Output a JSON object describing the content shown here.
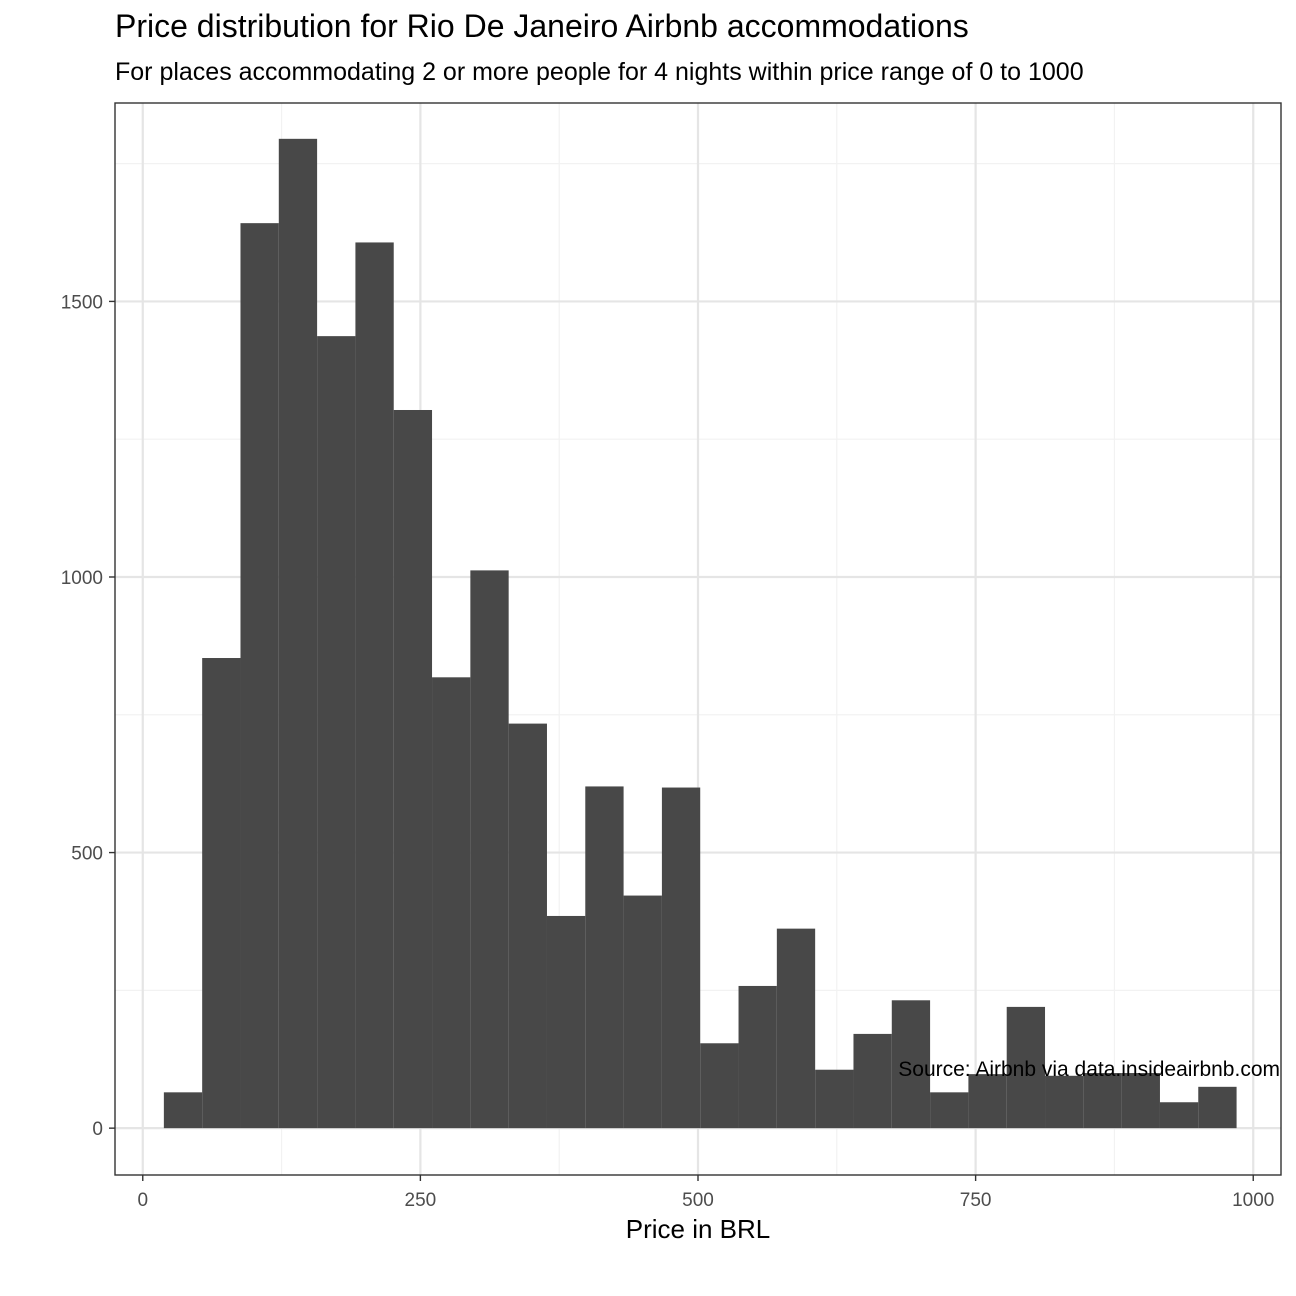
{
  "chart_data": {
    "type": "bar",
    "title": "Price distribution for Rio De Janeiro Airbnb accommodations",
    "subtitle": "For places accommodating 2 or more people for 4 nights within price range of 0 to 1000",
    "caption": "Source: Airbnb via data.insideairbnb.com",
    "xlabel": "Price in BRL",
    "ylabel": "",
    "xlim": [
      -25,
      1025
    ],
    "ylim": [
      -85,
      1860
    ],
    "x_ticks": [
      0,
      250,
      500,
      750,
      1000
    ],
    "x_tick_labels": [
      "0",
      "250",
      "500",
      "750",
      "1000"
    ],
    "y_ticks": [
      0,
      500,
      1000,
      1500
    ],
    "y_tick_labels": [
      "0",
      "500",
      "1000",
      "1500"
    ],
    "grid": true,
    "bin_width": 34.5,
    "bins": [
      {
        "x0": 19.0,
        "x1": 53.5,
        "count": 65
      },
      {
        "x0": 53.5,
        "x1": 88.0,
        "count": 853
      },
      {
        "x0": 88.0,
        "x1": 122.5,
        "count": 1642
      },
      {
        "x0": 122.5,
        "x1": 157.0,
        "count": 1795
      },
      {
        "x0": 157.0,
        "x1": 191.5,
        "count": 1437
      },
      {
        "x0": 191.5,
        "x1": 226.0,
        "count": 1607
      },
      {
        "x0": 226.0,
        "x1": 260.5,
        "count": 1303
      },
      {
        "x0": 260.5,
        "x1": 295.0,
        "count": 818
      },
      {
        "x0": 295.0,
        "x1": 329.5,
        "count": 1012
      },
      {
        "x0": 329.5,
        "x1": 364.0,
        "count": 734
      },
      {
        "x0": 364.0,
        "x1": 398.5,
        "count": 385
      },
      {
        "x0": 398.5,
        "x1": 433.0,
        "count": 620
      },
      {
        "x0": 433.0,
        "x1": 467.5,
        "count": 422
      },
      {
        "x0": 467.5,
        "x1": 502.0,
        "count": 618
      },
      {
        "x0": 502.0,
        "x1": 536.5,
        "count": 154
      },
      {
        "x0": 536.5,
        "x1": 571.0,
        "count": 258
      },
      {
        "x0": 571.0,
        "x1": 605.5,
        "count": 362
      },
      {
        "x0": 605.5,
        "x1": 640.0,
        "count": 106
      },
      {
        "x0": 640.0,
        "x1": 674.5,
        "count": 171
      },
      {
        "x0": 674.5,
        "x1": 709.0,
        "count": 232
      },
      {
        "x0": 709.0,
        "x1": 743.5,
        "count": 65
      },
      {
        "x0": 743.5,
        "x1": 778.0,
        "count": 98
      },
      {
        "x0": 778.0,
        "x1": 812.5,
        "count": 220
      },
      {
        "x0": 812.5,
        "x1": 847.0,
        "count": 95
      },
      {
        "x0": 847.0,
        "x1": 881.5,
        "count": 100
      },
      {
        "x0": 881.5,
        "x1": 916.0,
        "count": 100
      },
      {
        "x0": 916.0,
        "x1": 950.5,
        "count": 47
      },
      {
        "x0": 950.5,
        "x1": 985.0,
        "count": 75
      }
    ],
    "colors": {
      "bar": "#484848",
      "grid_major": "#e5e5e5",
      "grid_minor": "#f2f2f2",
      "panel_border": "#333333",
      "tick_text": "#4d4d4d"
    }
  }
}
